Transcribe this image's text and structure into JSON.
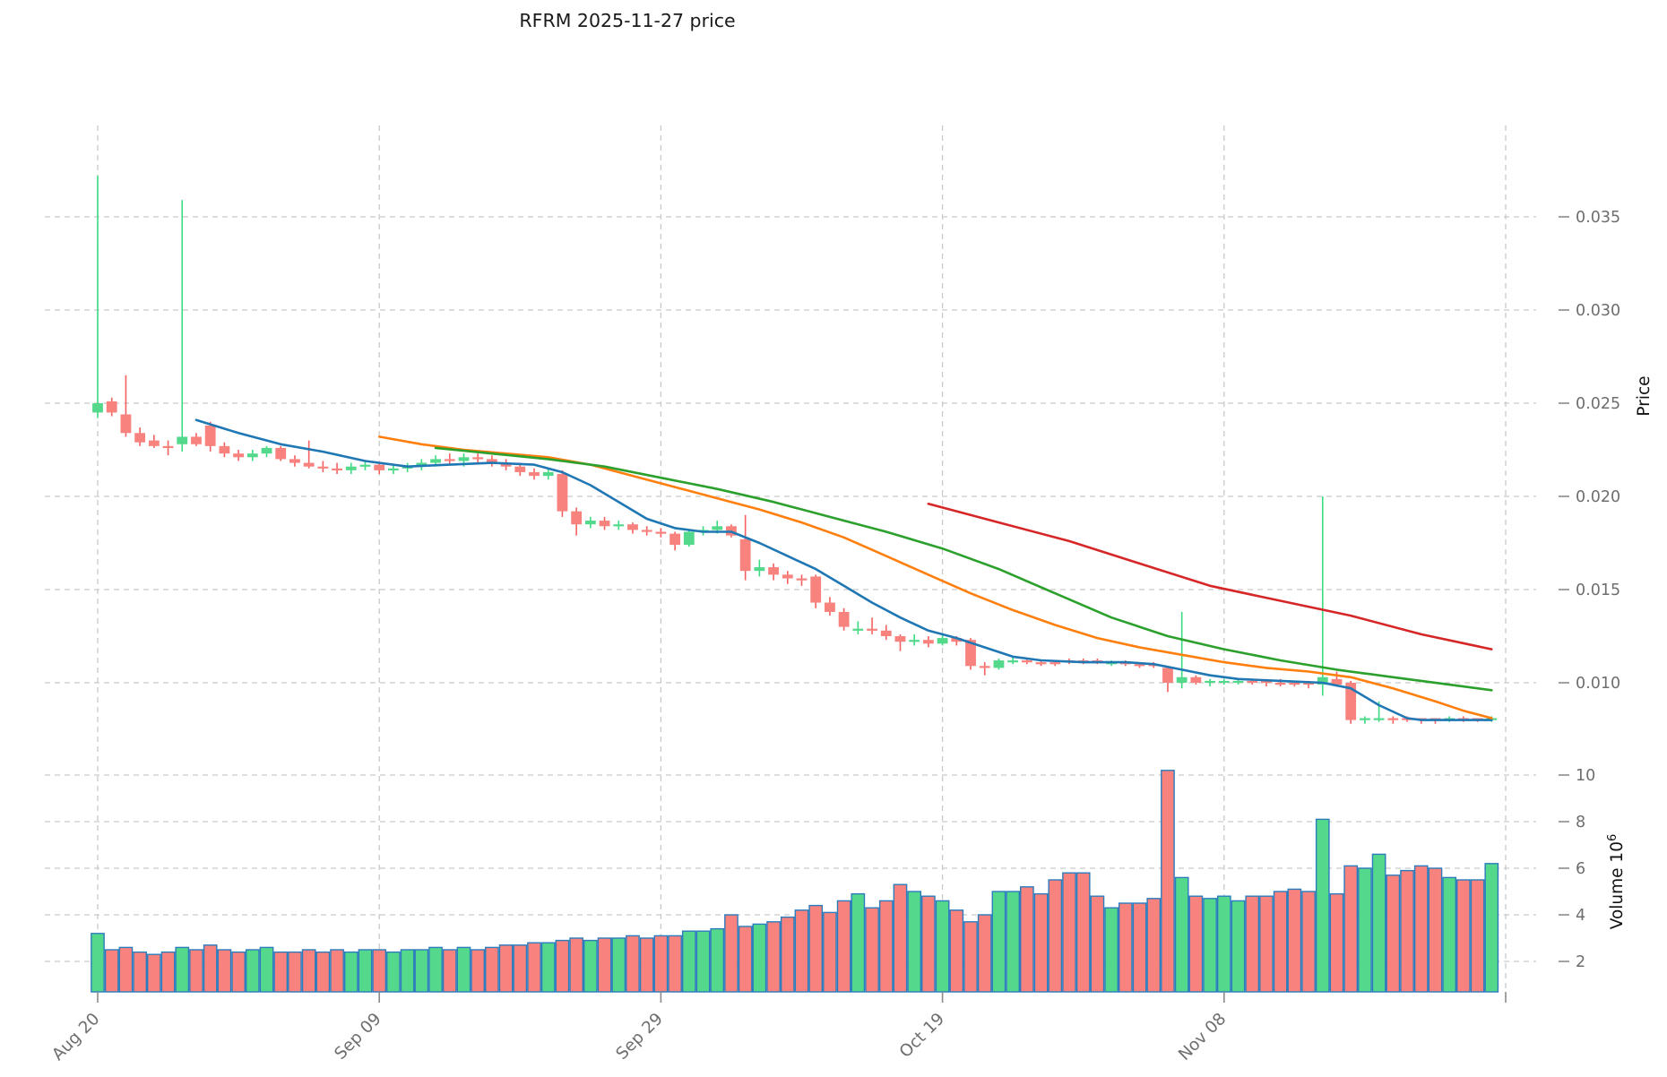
{
  "title": "RFRM  2025-11-27  price",
  "axes": {
    "price_label": "Price",
    "volume_label_word": "Volume",
    "volume_label_base": "10",
    "volume_label_exp": "6"
  },
  "chart_data": {
    "type": "candlestick+volume",
    "title": "RFRM  2025-11-27  price",
    "x_tick_labels": [
      "Aug 20",
      "Sep 09",
      "Sep 29",
      "Oct 19",
      "Nov 08"
    ],
    "x_tick_indices": [
      0,
      20,
      40,
      60,
      80
    ],
    "x_grid_indices": [
      0,
      20,
      40,
      60,
      80,
      100
    ],
    "price_gridlines": [
      0.035,
      0.03,
      0.025,
      0.02,
      0.015,
      0.01
    ],
    "price_tick_labels": [
      "0.035",
      "0.030",
      "0.025",
      "0.020",
      "0.015",
      "0.010"
    ],
    "price_ylim": [
      0.0064,
      0.0399
    ],
    "volume_gridlines": [
      10,
      8,
      6,
      4,
      2
    ],
    "volume_tick_labels": [
      "10",
      "8",
      "6",
      "4",
      "2"
    ],
    "volume_ylim": [
      0.69,
      10.9
    ],
    "volume_unit": 1000000,
    "grid": true,
    "legend": false,
    "candles_ohlcv": [
      [
        0.0245,
        0.0372,
        0.0242,
        0.025,
        3.2
      ],
      [
        0.0251,
        0.0253,
        0.0243,
        0.0245,
        2.5
      ],
      [
        0.0244,
        0.0265,
        0.0232,
        0.0234,
        2.6
      ],
      [
        0.0234,
        0.0237,
        0.0227,
        0.0229,
        2.4
      ],
      [
        0.023,
        0.0233,
        0.0226,
        0.0227,
        2.3
      ],
      [
        0.0227,
        0.023,
        0.0222,
        0.0226,
        2.4
      ],
      [
        0.0228,
        0.0359,
        0.0224,
        0.0232,
        2.6
      ],
      [
        0.0232,
        0.0234,
        0.0227,
        0.0228,
        2.5
      ],
      [
        0.0238,
        0.024,
        0.0224,
        0.0227,
        2.7
      ],
      [
        0.0227,
        0.0229,
        0.0221,
        0.0223,
        2.5
      ],
      [
        0.0223,
        0.0225,
        0.0219,
        0.0221,
        2.4
      ],
      [
        0.0221,
        0.0225,
        0.0219,
        0.0223,
        2.5
      ],
      [
        0.0223,
        0.0227,
        0.0221,
        0.0226,
        2.6
      ],
      [
        0.0226,
        0.0227,
        0.0219,
        0.022,
        2.4
      ],
      [
        0.022,
        0.0222,
        0.0216,
        0.0218,
        2.4
      ],
      [
        0.0218,
        0.023,
        0.0215,
        0.0216,
        2.5
      ],
      [
        0.0216,
        0.0219,
        0.0213,
        0.0215,
        2.4
      ],
      [
        0.0215,
        0.0218,
        0.0212,
        0.0214,
        2.5
      ],
      [
        0.0214,
        0.0218,
        0.0212,
        0.0216,
        2.4
      ],
      [
        0.0216,
        0.0219,
        0.0214,
        0.0217,
        2.5
      ],
      [
        0.0217,
        0.0218,
        0.0212,
        0.0214,
        2.5
      ],
      [
        0.0214,
        0.0217,
        0.0212,
        0.0215,
        2.4
      ],
      [
        0.0215,
        0.0218,
        0.0213,
        0.0216,
        2.5
      ],
      [
        0.0216,
        0.022,
        0.0214,
        0.0218,
        2.5
      ],
      [
        0.0218,
        0.0222,
        0.0216,
        0.022,
        2.6
      ],
      [
        0.022,
        0.0223,
        0.0217,
        0.0219,
        2.5
      ],
      [
        0.0219,
        0.0223,
        0.0216,
        0.0221,
        2.6
      ],
      [
        0.0221,
        0.0223,
        0.0218,
        0.022,
        2.5
      ],
      [
        0.022,
        0.0222,
        0.0216,
        0.0218,
        2.6
      ],
      [
        0.0218,
        0.022,
        0.0214,
        0.0216,
        2.7
      ],
      [
        0.0216,
        0.0218,
        0.0211,
        0.0213,
        2.7
      ],
      [
        0.0213,
        0.0215,
        0.0209,
        0.0211,
        2.8
      ],
      [
        0.0211,
        0.0215,
        0.0209,
        0.0213,
        2.8
      ],
      [
        0.0212,
        0.0214,
        0.0189,
        0.0192,
        2.9
      ],
      [
        0.0192,
        0.0194,
        0.0179,
        0.0185,
        3.0
      ],
      [
        0.0185,
        0.0189,
        0.0183,
        0.0187,
        2.9
      ],
      [
        0.0187,
        0.0189,
        0.0182,
        0.0184,
        3.0
      ],
      [
        0.0184,
        0.0187,
        0.0182,
        0.0185,
        3.0
      ],
      [
        0.0185,
        0.0186,
        0.018,
        0.0182,
        3.1
      ],
      [
        0.0182,
        0.0184,
        0.0179,
        0.0181,
        3.0
      ],
      [
        0.0181,
        0.0183,
        0.0178,
        0.018,
        3.1
      ],
      [
        0.018,
        0.0181,
        0.0171,
        0.0174,
        3.1
      ],
      [
        0.0174,
        0.0182,
        0.0173,
        0.0181,
        3.3
      ],
      [
        0.0181,
        0.0184,
        0.0179,
        0.0182,
        3.3
      ],
      [
        0.0182,
        0.0187,
        0.018,
        0.0184,
        3.4
      ],
      [
        0.0184,
        0.0185,
        0.0178,
        0.0179,
        4.0
      ],
      [
        0.0177,
        0.019,
        0.0155,
        0.016,
        3.5
      ],
      [
        0.016,
        0.0166,
        0.0157,
        0.0162,
        3.6
      ],
      [
        0.0162,
        0.0164,
        0.0155,
        0.0158,
        3.7
      ],
      [
        0.0158,
        0.016,
        0.0153,
        0.0156,
        3.9
      ],
      [
        0.0156,
        0.0158,
        0.0152,
        0.0155,
        4.2
      ],
      [
        0.0157,
        0.0158,
        0.014,
        0.0143,
        4.4
      ],
      [
        0.0143,
        0.0146,
        0.0136,
        0.0138,
        4.1
      ],
      [
        0.0138,
        0.014,
        0.0128,
        0.013,
        4.6
      ],
      [
        0.0128,
        0.0133,
        0.0126,
        0.0129,
        4.9
      ],
      [
        0.0129,
        0.0135,
        0.0126,
        0.0128,
        4.3
      ],
      [
        0.0128,
        0.0131,
        0.0123,
        0.0125,
        4.6
      ],
      [
        0.0125,
        0.0126,
        0.0117,
        0.0122,
        5.3
      ],
      [
        0.0122,
        0.0126,
        0.012,
        0.0123,
        5.0
      ],
      [
        0.0123,
        0.0125,
        0.0119,
        0.0121,
        4.8
      ],
      [
        0.0121,
        0.0126,
        0.012,
        0.0124,
        4.6
      ],
      [
        0.0124,
        0.0125,
        0.012,
        0.0122,
        4.2
      ],
      [
        0.0123,
        0.0124,
        0.0107,
        0.0109,
        3.7
      ],
      [
        0.0109,
        0.0111,
        0.0104,
        0.0108,
        4.0
      ],
      [
        0.0108,
        0.0113,
        0.0107,
        0.0112,
        5.0
      ],
      [
        0.0111,
        0.0114,
        0.011,
        0.0112,
        5.0
      ],
      [
        0.0112,
        0.0113,
        0.011,
        0.0111,
        5.2
      ],
      [
        0.0111,
        0.0112,
        0.0109,
        0.011,
        4.9
      ],
      [
        0.0111,
        0.0112,
        0.0109,
        0.011,
        5.5
      ],
      [
        0.0112,
        0.0113,
        0.011,
        0.0111,
        5.8
      ],
      [
        0.0112,
        0.0113,
        0.011,
        0.0111,
        5.8
      ],
      [
        0.0112,
        0.0113,
        0.011,
        0.0111,
        4.8
      ],
      [
        0.011,
        0.0112,
        0.0109,
        0.0111,
        4.3
      ],
      [
        0.0111,
        0.0112,
        0.0109,
        0.011,
        4.5
      ],
      [
        0.011,
        0.0111,
        0.0108,
        0.0109,
        4.5
      ],
      [
        0.011,
        0.0111,
        0.0108,
        0.0109,
        4.7
      ],
      [
        0.0108,
        0.0109,
        0.0095,
        0.01,
        10.2
      ],
      [
        0.01,
        0.0138,
        0.0097,
        0.0103,
        5.6
      ],
      [
        0.0103,
        0.0104,
        0.0099,
        0.01,
        4.8
      ],
      [
        0.01,
        0.0102,
        0.0098,
        0.0101,
        4.7
      ],
      [
        0.01,
        0.0102,
        0.0099,
        0.0101,
        4.8
      ],
      [
        0.01,
        0.0102,
        0.0099,
        0.0101,
        4.6
      ],
      [
        0.0101,
        0.0102,
        0.0099,
        0.01,
        4.8
      ],
      [
        0.0101,
        0.0102,
        0.0098,
        0.01,
        4.8
      ],
      [
        0.01,
        0.0102,
        0.0098,
        0.0099,
        5.0
      ],
      [
        0.01,
        0.0101,
        0.0098,
        0.0099,
        5.1
      ],
      [
        0.01,
        0.0101,
        0.0097,
        0.0099,
        5.0
      ],
      [
        0.0099,
        0.02,
        0.0093,
        0.0103,
        8.1
      ],
      [
        0.0102,
        0.0106,
        0.0098,
        0.0099,
        4.9
      ],
      [
        0.01,
        0.0101,
        0.0078,
        0.008,
        6.1
      ],
      [
        0.008,
        0.0082,
        0.0078,
        0.0081,
        6.0
      ],
      [
        0.008,
        0.009,
        0.0079,
        0.0081,
        6.6
      ],
      [
        0.0081,
        0.0082,
        0.0078,
        0.008,
        5.7
      ],
      [
        0.0081,
        0.0082,
        0.0079,
        0.008,
        5.9
      ],
      [
        0.0081,
        0.0081,
        0.0078,
        0.008,
        6.1
      ],
      [
        0.0081,
        0.0081,
        0.0078,
        0.008,
        6.0
      ],
      [
        0.008,
        0.0082,
        0.0079,
        0.0081,
        5.6
      ],
      [
        0.0081,
        0.0082,
        0.0079,
        0.008,
        5.5
      ],
      [
        0.0081,
        0.0081,
        0.0079,
        0.008,
        5.5
      ],
      [
        0.008,
        0.0082,
        0.0079,
        0.0081,
        6.2
      ]
    ],
    "ma_lines": [
      {
        "name": "ma-short-blue",
        "color": "#1f77b4",
        "points": [
          [
            7,
            0.0241
          ],
          [
            10,
            0.0234
          ],
          [
            13,
            0.0228
          ],
          [
            16,
            0.0224
          ],
          [
            19,
            0.0219
          ],
          [
            22,
            0.0216
          ],
          [
            25,
            0.0217
          ],
          [
            28,
            0.0218
          ],
          [
            31,
            0.0217
          ],
          [
            33,
            0.0213
          ],
          [
            35,
            0.0206
          ],
          [
            37,
            0.0197
          ],
          [
            39,
            0.0188
          ],
          [
            41,
            0.0183
          ],
          [
            43,
            0.0181
          ],
          [
            45,
            0.0181
          ],
          [
            47,
            0.0175
          ],
          [
            49,
            0.0168
          ],
          [
            51,
            0.0161
          ],
          [
            53,
            0.0152
          ],
          [
            55,
            0.0143
          ],
          [
            57,
            0.0135
          ],
          [
            59,
            0.0128
          ],
          [
            61,
            0.0124
          ],
          [
            63,
            0.0119
          ],
          [
            65,
            0.0114
          ],
          [
            67,
            0.0112
          ],
          [
            70,
            0.0111
          ],
          [
            73,
            0.0111
          ],
          [
            75,
            0.011
          ],
          [
            77,
            0.0107
          ],
          [
            79,
            0.0104
          ],
          [
            81,
            0.0102
          ],
          [
            84,
            0.0101
          ],
          [
            87,
            0.01
          ],
          [
            89,
            0.0097
          ],
          [
            91,
            0.0088
          ],
          [
            93,
            0.0081
          ],
          [
            94,
            0.008
          ],
          [
            99,
            0.008
          ]
        ]
      },
      {
        "name": "ma-mid-orange",
        "color": "#ff7f0e",
        "points": [
          [
            20,
            0.0232
          ],
          [
            23,
            0.0228
          ],
          [
            26,
            0.0225
          ],
          [
            29,
            0.0223
          ],
          [
            32,
            0.0221
          ],
          [
            35,
            0.0217
          ],
          [
            38,
            0.0211
          ],
          [
            41,
            0.0205
          ],
          [
            44,
            0.0199
          ],
          [
            47,
            0.0193
          ],
          [
            50,
            0.0186
          ],
          [
            53,
            0.0178
          ],
          [
            56,
            0.0168
          ],
          [
            59,
            0.0158
          ],
          [
            62,
            0.0148
          ],
          [
            65,
            0.0139
          ],
          [
            68,
            0.0131
          ],
          [
            71,
            0.0124
          ],
          [
            74,
            0.0119
          ],
          [
            77,
            0.0115
          ],
          [
            80,
            0.0111
          ],
          [
            83,
            0.0108
          ],
          [
            86,
            0.0106
          ],
          [
            89,
            0.0103
          ],
          [
            92,
            0.0097
          ],
          [
            95,
            0.009
          ],
          [
            97,
            0.0085
          ],
          [
            99,
            0.0081
          ]
        ]
      },
      {
        "name": "ma-long-green",
        "color": "#2ca02c",
        "points": [
          [
            24,
            0.0226
          ],
          [
            28,
            0.0223
          ],
          [
            32,
            0.022
          ],
          [
            36,
            0.0216
          ],
          [
            40,
            0.021
          ],
          [
            44,
            0.0204
          ],
          [
            48,
            0.0197
          ],
          [
            52,
            0.0189
          ],
          [
            56,
            0.0181
          ],
          [
            60,
            0.0172
          ],
          [
            64,
            0.0161
          ],
          [
            68,
            0.0148
          ],
          [
            72,
            0.0135
          ],
          [
            76,
            0.0125
          ],
          [
            80,
            0.0118
          ],
          [
            84,
            0.0112
          ],
          [
            88,
            0.0107
          ],
          [
            92,
            0.0103
          ],
          [
            96,
            0.0099
          ],
          [
            99,
            0.0096
          ]
        ]
      },
      {
        "name": "ma-longest-red",
        "color": "#d62728",
        "points": [
          [
            59,
            0.0196
          ],
          [
            64,
            0.0186
          ],
          [
            69,
            0.0176
          ],
          [
            74,
            0.0164
          ],
          [
            79,
            0.0152
          ],
          [
            84,
            0.0144
          ],
          [
            89,
            0.0136
          ],
          [
            94,
            0.0126
          ],
          [
            99,
            0.0118
          ]
        ]
      }
    ]
  },
  "colors": {
    "up_fill": "#54d98c",
    "up_wick": "#3adc7f",
    "down_fill": "#f8827e",
    "down_wick": "#f4605f",
    "volume_edge": "#2b7bbd",
    "grid": "#c9c9c9",
    "tick_mark": "#8a8a8a",
    "tick_label": "#6e6e6e",
    "title_color": "#1a1a1a",
    "axis_label_color": "#111111"
  }
}
